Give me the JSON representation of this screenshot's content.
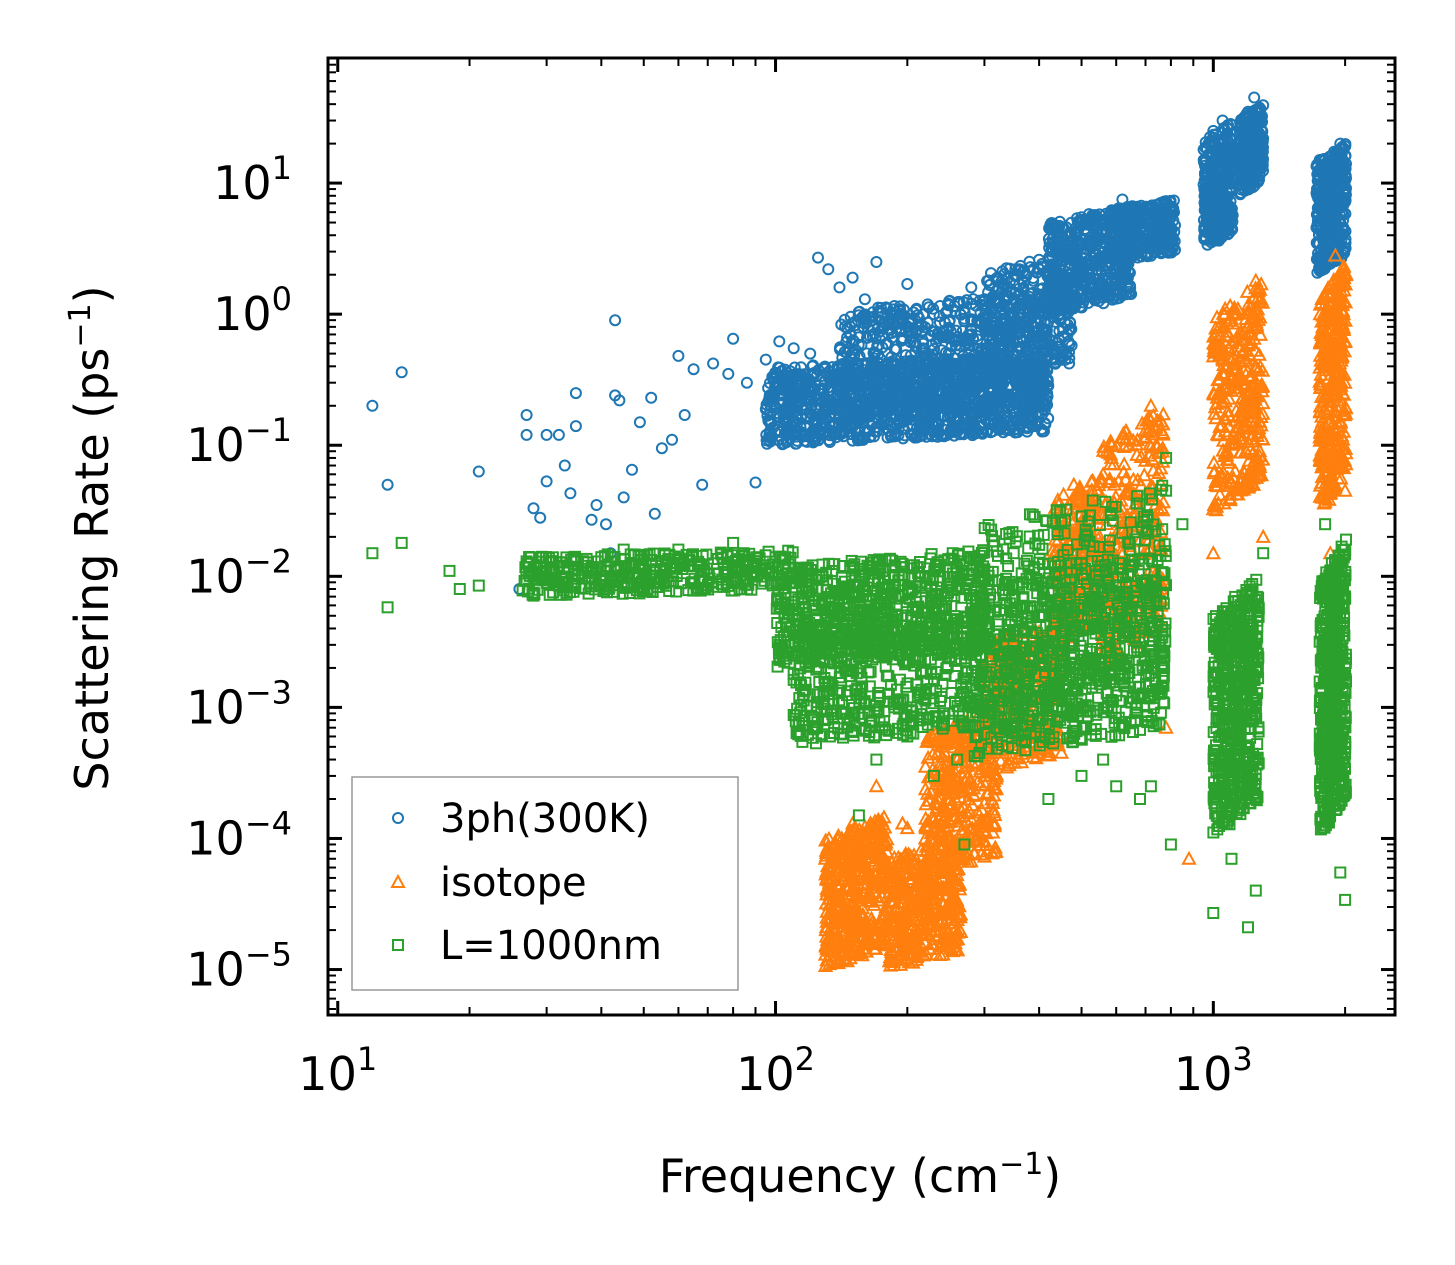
{
  "chart_data": {
    "type": "scatter",
    "xscale": "log",
    "yscale": "log",
    "xlim": [
      9.5,
      2600
    ],
    "ylim": [
      4.5e-06,
      90
    ],
    "xlabel": "Frequency (cm",
    "xlabel_sup": "−1",
    "xlabel_tail": ")",
    "ylabel": "Scattering Rate (ps",
    "ylabel_sup": "−1",
    "ylabel_tail": ")",
    "xticks": [
      {
        "value": 10,
        "base": "10",
        "exp": "1"
      },
      {
        "value": 100,
        "base": "10",
        "exp": "2"
      },
      {
        "value": 1000,
        "base": "10",
        "exp": "3"
      }
    ],
    "yticks": [
      {
        "value": 1e-05,
        "base": "10",
        "exp": "−5"
      },
      {
        "value": 0.0001,
        "base": "10",
        "exp": "−4"
      },
      {
        "value": 0.001,
        "base": "10",
        "exp": "−3"
      },
      {
        "value": 0.01,
        "base": "10",
        "exp": "−2"
      },
      {
        "value": 0.1,
        "base": "10",
        "exp": "−1"
      },
      {
        "value": 1,
        "base": "10",
        "exp": "0"
      },
      {
        "value": 10,
        "base": "10",
        "exp": "1"
      }
    ],
    "legend_position": "lower-left",
    "series": [
      {
        "name": "3ph(300K)",
        "marker": "circle",
        "color": "#1f77b4",
        "points": [
          [
            12,
            0.2
          ],
          [
            13,
            0.05
          ],
          [
            14,
            0.36
          ],
          [
            21,
            0.063
          ],
          [
            26,
            0.008
          ],
          [
            27,
            0.17
          ],
          [
            27,
            0.12
          ],
          [
            28,
            0.033
          ],
          [
            29,
            0.028
          ],
          [
            30,
            0.12
          ],
          [
            30,
            0.053
          ],
          [
            32,
            0.12
          ],
          [
            33,
            0.07
          ],
          [
            34,
            0.043
          ],
          [
            35,
            0.25
          ],
          [
            35,
            0.14
          ],
          [
            38,
            0.027
          ],
          [
            39,
            0.035
          ],
          [
            41,
            0.025
          ],
          [
            42,
            0.015
          ],
          [
            43,
            0.9
          ],
          [
            43,
            0.24
          ],
          [
            44,
            0.22
          ],
          [
            45,
            0.04
          ],
          [
            47,
            0.065
          ],
          [
            49,
            0.15
          ],
          [
            52,
            0.23
          ],
          [
            53,
            0.03
          ],
          [
            55,
            0.095
          ],
          [
            58,
            0.11
          ],
          [
            60,
            0.48
          ],
          [
            62,
            0.17
          ],
          [
            65,
            0.38
          ],
          [
            68,
            0.05
          ],
          [
            72,
            0.42
          ],
          [
            78,
            0.35
          ],
          [
            80,
            0.65
          ],
          [
            86,
            0.3
          ],
          [
            90,
            0.052
          ],
          [
            95,
            0.45
          ],
          [
            102,
            0.62
          ],
          [
            110,
            0.55
          ],
          [
            120,
            0.5
          ],
          [
            125,
            2.7
          ],
          [
            132,
            2.2
          ],
          [
            140,
            1.6
          ],
          [
            150,
            1.9
          ],
          [
            160,
            1.3
          ],
          [
            170,
            2.5
          ],
          [
            180,
            1.1
          ],
          [
            200,
            1.7
          ],
          [
            210,
            1.1
          ],
          [
            230,
            1.0
          ],
          [
            250,
            0.9
          ],
          [
            280,
            1.6
          ],
          [
            300,
            1.3
          ],
          [
            330,
            1.7
          ],
          [
            360,
            2.2
          ],
          [
            400,
            2.6
          ],
          [
            430,
            3.0
          ],
          [
            470,
            4.2
          ],
          [
            520,
            5.8
          ],
          [
            580,
            4.5
          ],
          [
            620,
            7.5
          ],
          [
            650,
            6.2
          ],
          [
            700,
            5.2
          ],
          [
            750,
            4.8
          ],
          [
            800,
            4.5
          ],
          [
            950,
            18
          ],
          [
            1000,
            25
          ],
          [
            1050,
            30
          ],
          [
            1100,
            17
          ],
          [
            1150,
            10
          ],
          [
            1200,
            35
          ],
          [
            1240,
            45
          ],
          [
            1270,
            16
          ],
          [
            1750,
            15
          ],
          [
            1850,
            8
          ],
          [
            1950,
            20
          ],
          [
            2000,
            13
          ]
        ],
        "bands": [
          {
            "x": [
              95,
              420
            ],
            "y": [
              0.1,
              0.5
            ],
            "n": 1300
          },
          {
            "x": [
              140,
              420
            ],
            "y": [
              0.15,
              1.5
            ],
            "n": 700
          },
          {
            "x": [
              300,
              480
            ],
            "y": [
              0.3,
              3.0
            ],
            "n": 350
          },
          {
            "x": [
              420,
              650
            ],
            "y": [
              1.0,
              6.5
            ],
            "n": 500
          },
          {
            "x": [
              580,
              820
            ],
            "y": [
              2.5,
              7.5
            ],
            "n": 350
          },
          {
            "x": [
              950,
              1110
            ],
            "y": [
              3.0,
              30
            ],
            "n": 350
          },
          {
            "x": [
              1150,
              1300
            ],
            "y": [
              8.0,
              40
            ],
            "n": 300
          },
          {
            "x": [
              1720,
              2010
            ],
            "y": [
              2.0,
              20
            ],
            "n": 380
          }
        ]
      },
      {
        "name": "isotope",
        "marker": "triangle",
        "color": "#ff7f0e",
        "points": [
          [
            130,
            7e-05
          ],
          [
            140,
            6e-05
          ],
          [
            150,
            0.00013
          ],
          [
            170,
            0.00025
          ],
          [
            195,
            0.00013
          ],
          [
            200,
            0.00012
          ],
          [
            220,
            0.0001
          ],
          [
            250,
            0.00022
          ],
          [
            300,
            0.0003
          ],
          [
            450,
            0.00045
          ],
          [
            480,
            0.05
          ],
          [
            560,
            0.06
          ],
          [
            640,
            0.02
          ],
          [
            700,
            0.13
          ],
          [
            720,
            0.2
          ],
          [
            760,
            0.13
          ],
          [
            780,
            0.0007
          ],
          [
            880,
            7e-05
          ],
          [
            1000,
            0.015
          ],
          [
            1050,
            0.35
          ],
          [
            1100,
            0.45
          ],
          [
            1200,
            0.8
          ],
          [
            1250,
            1.8
          ],
          [
            1300,
            0.02
          ],
          [
            1800,
            0.045
          ],
          [
            1850,
            0.015
          ],
          [
            1900,
            2.8
          ],
          [
            2000,
            0.045
          ]
        ],
        "bands": [
          {
            "x": [
              130,
              180
            ],
            "y": [
              1e-05,
              0.00015
            ],
            "n": 450
          },
          {
            "x": [
              180,
              265
            ],
            "y": [
              1e-05,
              0.0001
            ],
            "n": 450
          },
          {
            "x": [
              220,
              320
            ],
            "y": [
              5e-05,
              0.001
            ],
            "n": 350
          },
          {
            "x": [
              300,
              450
            ],
            "y": [
              0.0003,
              0.005
            ],
            "n": 300
          },
          {
            "x": [
              430,
              560
            ],
            "y": [
              0.003,
              0.06
            ],
            "n": 250
          },
          {
            "x": [
              560,
              770
            ],
            "y": [
              0.002,
              0.2
            ],
            "n": 280
          },
          {
            "x": [
              1000,
              1300
            ],
            "y": [
              0.03,
              1.8
            ],
            "n": 350
          },
          {
            "x": [
              1750,
              2010
            ],
            "y": [
              0.03,
              2.5
            ],
            "n": 350
          }
        ]
      },
      {
        "name": "L=1000nm",
        "marker": "square",
        "color": "#2ca02c",
        "points": [
          [
            12,
            0.015
          ],
          [
            13,
            0.0058
          ],
          [
            14,
            0.018
          ],
          [
            18,
            0.011
          ],
          [
            19,
            0.008
          ],
          [
            21,
            0.0085
          ],
          [
            28,
            0.01
          ],
          [
            30,
            0.011
          ],
          [
            32,
            0.0085
          ],
          [
            40,
            0.014
          ],
          [
            42,
            0.013
          ],
          [
            45,
            0.016
          ],
          [
            60,
            0.016
          ],
          [
            80,
            0.018
          ],
          [
            100,
            0.014
          ],
          [
            110,
            0.0018
          ],
          [
            130,
            0.0008
          ],
          [
            150,
            0.0009
          ],
          [
            155,
            0.00015
          ],
          [
            170,
            0.0004
          ],
          [
            200,
            0.0006
          ],
          [
            230,
            0.0003
          ],
          [
            260,
            0.0004
          ],
          [
            270,
            9e-05
          ],
          [
            350,
            0.015
          ],
          [
            420,
            0.0002
          ],
          [
            500,
            0.0003
          ],
          [
            560,
            0.0004
          ],
          [
            600,
            0.00025
          ],
          [
            680,
            0.0002
          ],
          [
            720,
            0.00025
          ],
          [
            780,
            0.08
          ],
          [
            780,
            0.045
          ],
          [
            800,
            9e-05
          ],
          [
            850,
            0.025
          ],
          [
            1000,
            2.7e-05
          ],
          [
            1050,
            0.0003
          ],
          [
            1100,
            7e-05
          ],
          [
            1200,
            2.1e-05
          ],
          [
            1250,
            4e-05
          ],
          [
            1300,
            0.015
          ],
          [
            1800,
            0.025
          ],
          [
            1850,
            0.0003
          ],
          [
            1950,
            5.5e-05
          ],
          [
            2000,
            3.4e-05
          ]
        ],
        "bands": [
          {
            "x": [
              26,
              110
            ],
            "y": [
              0.007,
              0.016
            ],
            "n": 400
          },
          {
            "x": [
              100,
              300
            ],
            "y": [
              0.002,
              0.016
            ],
            "n": 700
          },
          {
            "x": [
              110,
              300
            ],
            "y": [
              0.0005,
              0.005
            ],
            "n": 450
          },
          {
            "x": [
              280,
              780
            ],
            "y": [
              0.0004,
              0.015
            ],
            "n": 700
          },
          {
            "x": [
              300,
              780
            ],
            "y": [
              0.0006,
              0.05
            ],
            "n": 350
          },
          {
            "x": [
              1000,
              1270
            ],
            "y": [
              0.0001,
              0.01
            ],
            "n": 550
          },
          {
            "x": [
              1750,
              2010
            ],
            "y": [
              0.0001,
              0.02
            ],
            "n": 550
          }
        ]
      }
    ]
  }
}
